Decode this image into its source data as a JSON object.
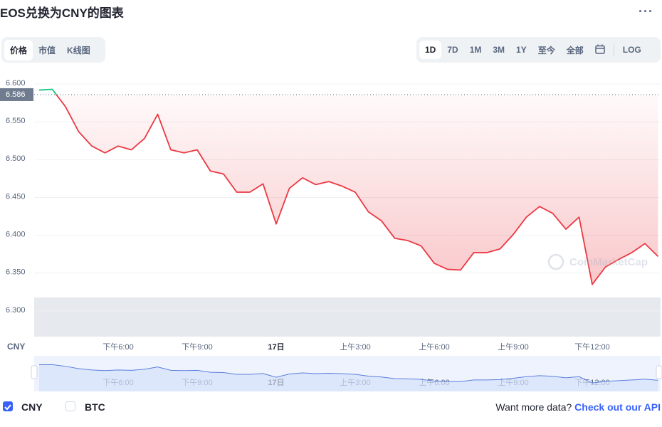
{
  "header": {
    "title": "EOS兑换为CNY的图表"
  },
  "tabs": [
    "价格",
    "市值",
    "K线图"
  ],
  "ranges": [
    "1D",
    "7D",
    "1M",
    "3M",
    "1Y",
    "至今",
    "全部"
  ],
  "log_label": "LOG",
  "chart_data": {
    "type": "line",
    "categories": [
      null,
      null,
      null,
      null,
      null,
      null,
      "下午6:00",
      null,
      null,
      null,
      null,
      null,
      "下午9:00",
      null,
      null,
      null,
      null,
      null,
      "17日",
      null,
      null,
      null,
      null,
      null,
      "上午3:00",
      null,
      null,
      null,
      null,
      null,
      "上午6:00",
      null,
      null,
      null,
      null,
      null,
      "上午9:00",
      null,
      null,
      null,
      null,
      null,
      "下午12:00",
      null,
      null,
      null,
      null,
      null
    ],
    "series": [
      {
        "name": "CNY",
        "color": "#ea3943",
        "values": [
          6.592,
          6.593,
          6.57,
          6.537,
          6.518,
          6.509,
          6.518,
          6.513,
          6.528,
          6.56,
          6.513,
          6.509,
          6.513,
          6.485,
          6.481,
          6.457,
          6.457,
          6.468,
          6.415,
          6.462,
          6.476,
          6.467,
          6.471,
          6.465,
          6.457,
          6.431,
          6.419,
          6.396,
          6.393,
          6.386,
          6.363,
          6.355,
          6.354,
          6.377,
          6.377,
          6.382,
          6.401,
          6.424,
          6.438,
          6.429,
          6.408,
          6.424,
          6.335,
          6.358,
          6.368,
          6.377,
          6.389,
          6.372
        ]
      }
    ],
    "up_color": "#16c784",
    "baseline": 6.586,
    "ylim": [
      6.266,
      6.617
    ],
    "yticks": [
      {
        "value": 6.3,
        "label": "6.300"
      },
      {
        "value": 6.35,
        "label": "6.350"
      },
      {
        "value": 6.4,
        "label": "6.400"
      },
      {
        "value": 6.45,
        "label": "6.450"
      },
      {
        "value": 6.5,
        "label": "6.500"
      },
      {
        "value": 6.55,
        "label": "6.550"
      },
      {
        "value": 6.6,
        "label": "6.600"
      }
    ],
    "y_unit": "CNY",
    "watermark": "CoinMarketCap",
    "grid": true
  },
  "currencies": [
    {
      "label": "CNY",
      "checked": true
    },
    {
      "label": "BTC",
      "checked": false
    }
  ],
  "footer": {
    "prompt": "Want more data?",
    "link": "Check out our API"
  }
}
